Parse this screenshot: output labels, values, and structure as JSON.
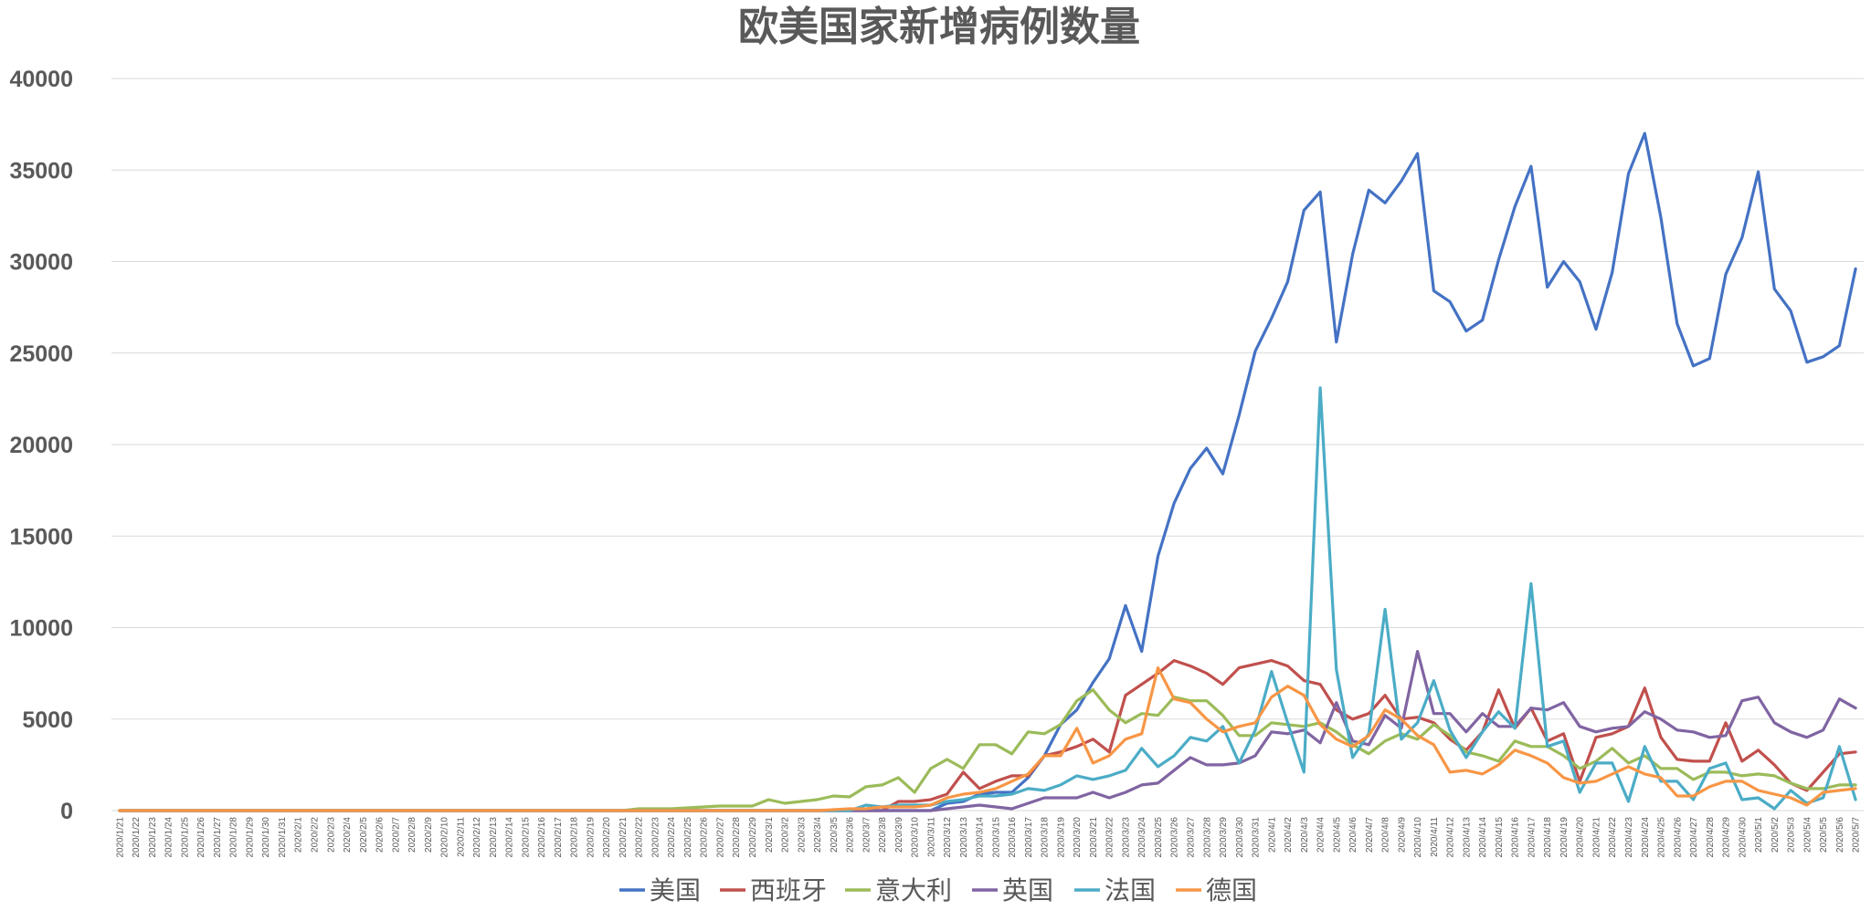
{
  "chart_data": {
    "type": "line",
    "title": "欧美国家新增病例数量",
    "xlabel": "",
    "ylabel": "",
    "ylim": [
      0,
      40000
    ],
    "yticks": [
      0,
      5000,
      10000,
      15000,
      20000,
      25000,
      30000,
      35000,
      40000
    ],
    "grid": true,
    "legend": "bottom",
    "x": [
      "2020/1/21",
      "2020/1/22",
      "2020/1/23",
      "2020/1/24",
      "2020/1/25",
      "2020/1/26",
      "2020/1/27",
      "2020/1/28",
      "2020/1/29",
      "2020/1/30",
      "2020/1/31",
      "2020/2/1",
      "2020/2/2",
      "2020/2/3",
      "2020/2/4",
      "2020/2/5",
      "2020/2/6",
      "2020/2/7",
      "2020/2/8",
      "2020/2/9",
      "2020/2/10",
      "2020/2/11",
      "2020/2/12",
      "2020/2/13",
      "2020/2/14",
      "2020/2/15",
      "2020/2/16",
      "2020/2/17",
      "2020/2/18",
      "2020/2/19",
      "2020/2/20",
      "2020/2/21",
      "2020/2/22",
      "2020/2/23",
      "2020/2/24",
      "2020/2/25",
      "2020/2/26",
      "2020/2/27",
      "2020/2/28",
      "2020/2/29",
      "2020/3/1",
      "2020/3/2",
      "2020/3/3",
      "2020/3/4",
      "2020/3/5",
      "2020/3/6",
      "2020/3/7",
      "2020/3/8",
      "2020/3/9",
      "2020/3/10",
      "2020/3/11",
      "2020/3/12",
      "2020/3/13",
      "2020/3/14",
      "2020/3/15",
      "2020/3/16",
      "2020/3/17",
      "2020/3/18",
      "2020/3/19",
      "2020/3/20",
      "2020/3/21",
      "2020/3/22",
      "2020/3/23",
      "2020/3/24",
      "2020/3/25",
      "2020/3/26",
      "2020/3/27",
      "2020/3/28",
      "2020/3/29",
      "2020/3/30",
      "2020/3/31",
      "2020/4/1",
      "2020/4/2",
      "2020/4/3",
      "2020/4/4",
      "2020/4/5",
      "2020/4/6",
      "2020/4/7",
      "2020/4/8",
      "2020/4/9",
      "2020/4/10",
      "2020/4/11",
      "2020/4/12",
      "2020/4/13",
      "2020/4/14",
      "2020/4/15",
      "2020/4/16",
      "2020/4/17",
      "2020/4/18",
      "2020/4/19",
      "2020/4/20",
      "2020/4/21",
      "2020/4/22",
      "2020/4/23",
      "2020/4/24",
      "2020/4/25",
      "2020/4/26",
      "2020/4/27",
      "2020/4/28",
      "2020/4/29",
      "2020/4/30",
      "2020/5/1",
      "2020/5/2",
      "2020/5/3",
      "2020/5/4",
      "2020/5/5",
      "2020/5/6",
      "2020/5/7"
    ],
    "series": [
      {
        "name": "美国",
        "color": "#4472c4",
        "values": [
          0,
          0,
          0,
          0,
          0,
          0,
          0,
          0,
          0,
          0,
          0,
          0,
          0,
          0,
          0,
          0,
          0,
          0,
          0,
          0,
          0,
          0,
          0,
          0,
          0,
          0,
          0,
          0,
          0,
          0,
          0,
          0,
          0,
          0,
          0,
          0,
          0,
          0,
          0,
          0,
          0,
          0,
          0,
          0,
          0,
          0,
          0,
          0,
          0,
          0,
          0,
          400,
          500,
          900,
          1000,
          1000,
          1800,
          3000,
          4700,
          5500,
          7000,
          8300,
          11200,
          8700,
          13900,
          16800,
          18700,
          19800,
          18400,
          21600,
          25100,
          26900,
          28900,
          32800,
          33800,
          25600,
          30400,
          33900,
          33200,
          34400,
          35900,
          28400,
          27800,
          26200,
          26800,
          30100,
          33000,
          35200,
          28600,
          30000,
          28900,
          26300,
          29400,
          34800,
          37000,
          32400,
          26600,
          24300,
          24700,
          29300,
          31300,
          34900,
          28500,
          27300,
          24500,
          24800,
          25400,
          29600
        ]
      },
      {
        "name": "西班牙",
        "color": "#c0504d",
        "values": [
          0,
          0,
          0,
          0,
          0,
          0,
          0,
          0,
          0,
          0,
          0,
          0,
          0,
          0,
          0,
          0,
          0,
          0,
          0,
          0,
          0,
          0,
          0,
          0,
          0,
          0,
          0,
          0,
          0,
          0,
          0,
          0,
          0,
          0,
          0,
          0,
          0,
          0,
          0,
          0,
          0,
          0,
          0,
          0,
          0,
          0,
          0,
          0,
          500,
          500,
          600,
          900,
          2100,
          1200,
          1600,
          1900,
          1900,
          3000,
          3200,
          3500,
          3900,
          3200,
          6300,
          6900,
          7500,
          8200,
          7900,
          7500,
          6900,
          7800,
          8000,
          8200,
          7900,
          7100,
          6900,
          5500,
          5000,
          5300,
          6300,
          5000,
          5100,
          4800,
          3900,
          3300,
          4300,
          6600,
          4500,
          5600,
          3800,
          4200,
          1600,
          4000,
          4200,
          4600,
          6700,
          4000,
          2800,
          2700,
          2700,
          4800,
          2700,
          3300,
          2500,
          1500,
          1100,
          2100,
          3100,
          3200
        ]
      },
      {
        "name": "意大利",
        "color": "#9bbb59",
        "values": [
          0,
          0,
          0,
          0,
          0,
          0,
          0,
          0,
          0,
          0,
          0,
          0,
          0,
          0,
          0,
          0,
          0,
          0,
          0,
          0,
          0,
          0,
          0,
          0,
          0,
          0,
          0,
          0,
          0,
          0,
          0,
          0,
          100,
          100,
          100,
          150,
          200,
          250,
          250,
          250,
          600,
          400,
          500,
          600,
          800,
          750,
          1300,
          1400,
          1800,
          1000,
          2300,
          2800,
          2300,
          3600,
          3600,
          3100,
          4300,
          4200,
          4700,
          6000,
          6600,
          5500,
          4800,
          5300,
          5200,
          6200,
          6000,
          6000,
          5200,
          4100,
          4100,
          4800,
          4700,
          4600,
          4800,
          4300,
          3600,
          3100,
          3800,
          4200,
          3900,
          4700,
          4100,
          3200,
          3000,
          2700,
          3800,
          3500,
          3500,
          3000,
          2300,
          2700,
          3400,
          2600,
          3000,
          2300,
          2300,
          1700,
          2100,
          2100,
          1900,
          2000,
          1900,
          1500,
          1200,
          1200,
          1400,
          1400
        ]
      },
      {
        "name": "英国",
        "color": "#8064a2",
        "values": [
          0,
          0,
          0,
          0,
          0,
          0,
          0,
          0,
          0,
          0,
          0,
          0,
          0,
          0,
          0,
          0,
          0,
          0,
          0,
          0,
          0,
          0,
          0,
          0,
          0,
          0,
          0,
          0,
          0,
          0,
          0,
          0,
          0,
          0,
          0,
          0,
          0,
          0,
          0,
          0,
          0,
          0,
          0,
          0,
          0,
          0,
          0,
          0,
          0,
          0,
          0,
          100,
          200,
          300,
          200,
          100,
          400,
          700,
          700,
          700,
          1000,
          700,
          1000,
          1400,
          1500,
          2200,
          2900,
          2500,
          2500,
          2600,
          3000,
          4300,
          4200,
          4400,
          3700,
          5900,
          3800,
          3600,
          5200,
          4500,
          8700,
          5300,
          5300,
          4300,
          5300,
          4600,
          4600,
          5600,
          5500,
          5900,
          4600,
          4300,
          4500,
          4600,
          5400,
          5000,
          4400,
          4300,
          4000,
          4100,
          6000,
          6200,
          4800,
          4300,
          4000,
          4400,
          6100,
          5600
        ]
      },
      {
        "name": "法国",
        "color": "#4bacc6",
        "values": [
          0,
          0,
          0,
          0,
          0,
          0,
          0,
          0,
          0,
          0,
          0,
          0,
          0,
          0,
          0,
          0,
          0,
          0,
          0,
          0,
          0,
          0,
          0,
          0,
          0,
          0,
          0,
          0,
          0,
          0,
          0,
          0,
          0,
          0,
          0,
          0,
          0,
          0,
          0,
          0,
          0,
          0,
          0,
          0,
          0,
          0,
          300,
          200,
          300,
          300,
          300,
          500,
          600,
          800,
          800,
          900,
          1200,
          1100,
          1400,
          1900,
          1700,
          1900,
          2200,
          3400,
          2400,
          3000,
          4000,
          3800,
          4600,
          2600,
          4400,
          7600,
          4800,
          2100,
          23100,
          7700,
          2900,
          4200,
          11000,
          3900,
          4800,
          7100,
          4400,
          2900,
          4300,
          5400,
          4500,
          12400,
          3500,
          3800,
          1000,
          2600,
          2600,
          500,
          3500,
          1600,
          1600,
          600,
          2300,
          2600,
          600,
          700,
          100,
          1100,
          400,
          700,
          3500,
          600
        ]
      },
      {
        "name": "德国",
        "color": "#f79646",
        "values": [
          0,
          0,
          0,
          0,
          0,
          0,
          0,
          0,
          0,
          0,
          0,
          0,
          0,
          0,
          0,
          0,
          0,
          0,
          0,
          0,
          0,
          0,
          0,
          0,
          0,
          0,
          0,
          0,
          0,
          0,
          0,
          0,
          0,
          0,
          0,
          0,
          0,
          0,
          0,
          0,
          0,
          0,
          0,
          0,
          50,
          100,
          100,
          200,
          200,
          200,
          300,
          700,
          900,
          1000,
          1200,
          1600,
          2000,
          3000,
          3000,
          4500,
          2600,
          3000,
          3900,
          4200,
          7800,
          6100,
          5900,
          5000,
          4300,
          4600,
          4800,
          6200,
          6800,
          6300,
          4700,
          3900,
          3500,
          4100,
          5500,
          5000,
          4100,
          3600,
          2100,
          2200,
          2000,
          2500,
          3300,
          3000,
          2600,
          1800,
          1500,
          1600,
          2000,
          2400,
          2000,
          1800,
          800,
          800,
          1300,
          1600,
          1600,
          1100,
          900,
          700,
          300,
          1000,
          1100,
          1200
        ]
      }
    ]
  }
}
